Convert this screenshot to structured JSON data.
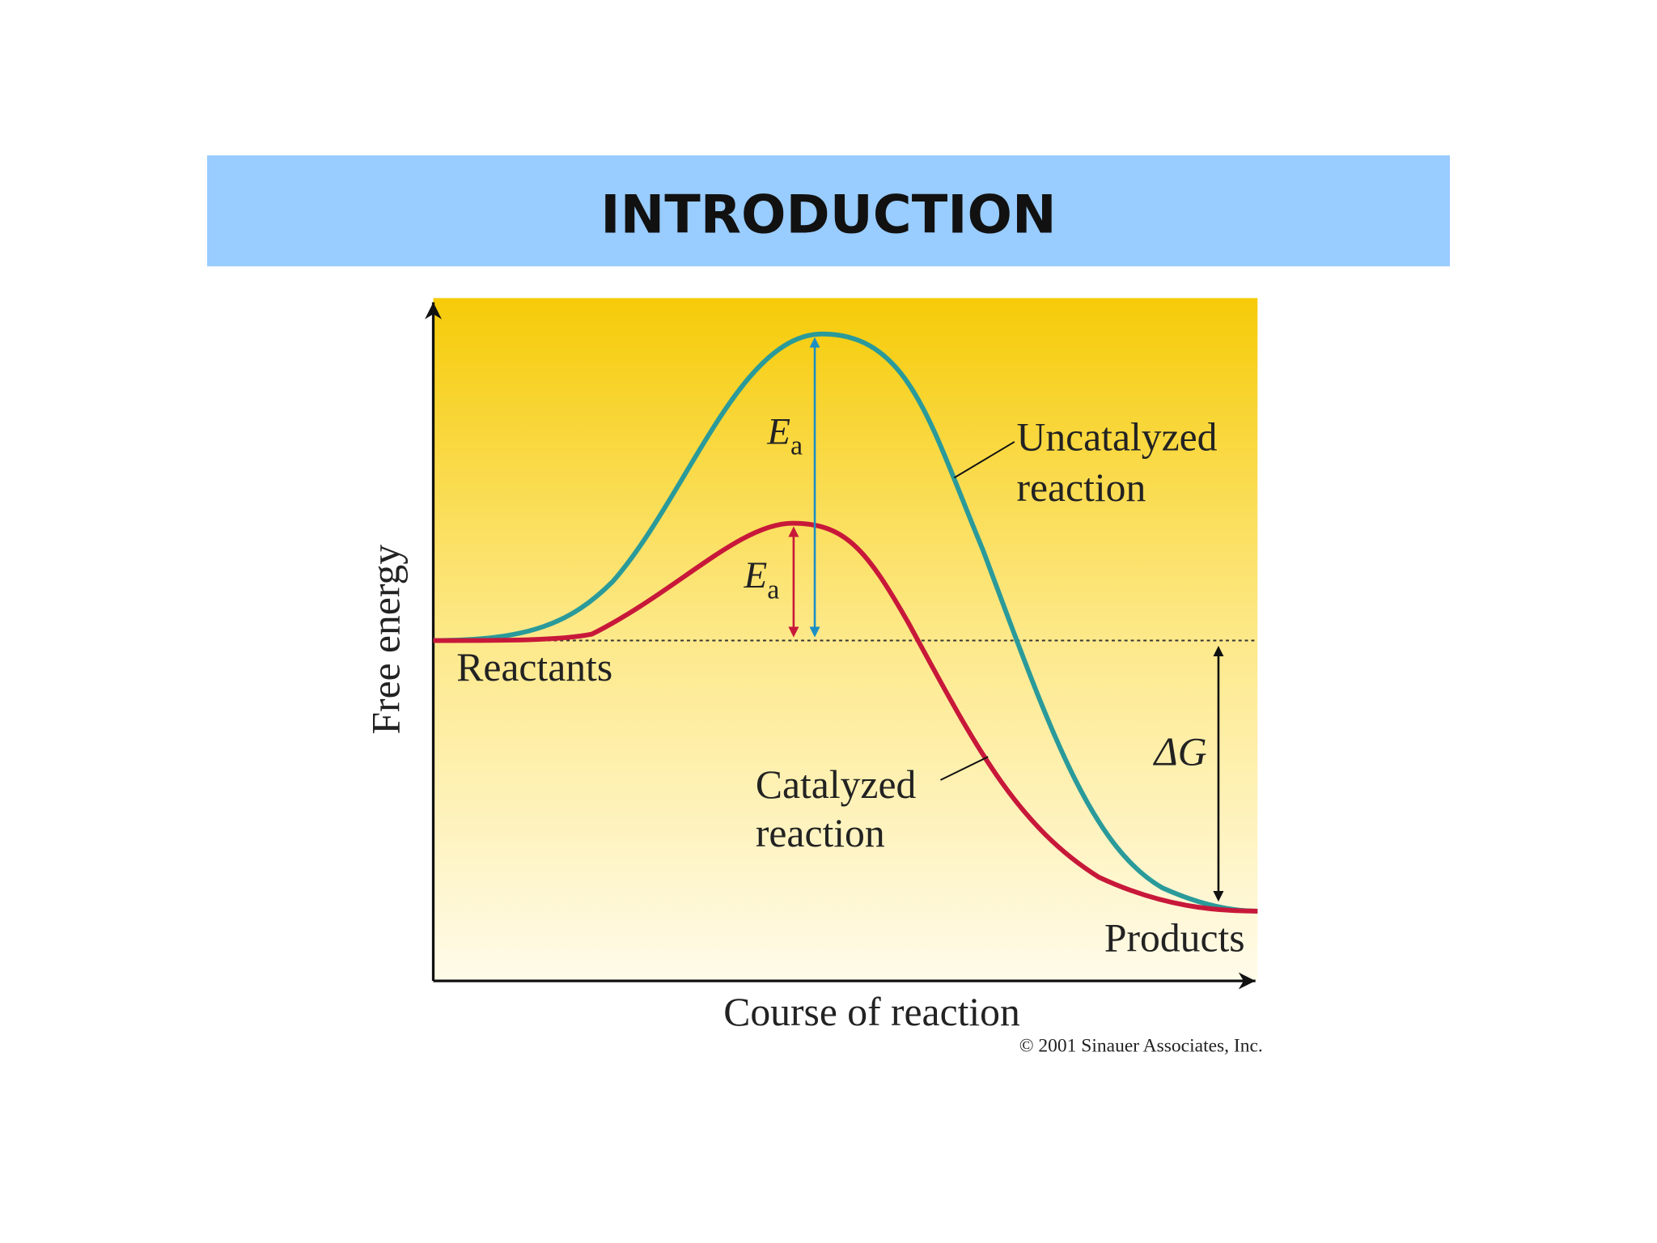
{
  "header": {
    "title": "INTRODUCTION"
  },
  "diagram": {
    "y_axis_label": "Free energy",
    "x_axis_label": "Course of reaction",
    "uncatalyzed_label": [
      "Uncatalyzed",
      "reaction"
    ],
    "catalyzed_label": [
      "Catalyzed",
      "reaction"
    ],
    "reactants_label": "Reactants",
    "products_label": "Products",
    "delta_g_label": "ΔG",
    "ea_uncatalyzed": {
      "symbol": "E",
      "subscript": "a"
    },
    "ea_catalyzed": {
      "symbol": "E",
      "subscript": "a"
    },
    "credit": "© 2001 Sinauer Associates, Inc."
  }
}
